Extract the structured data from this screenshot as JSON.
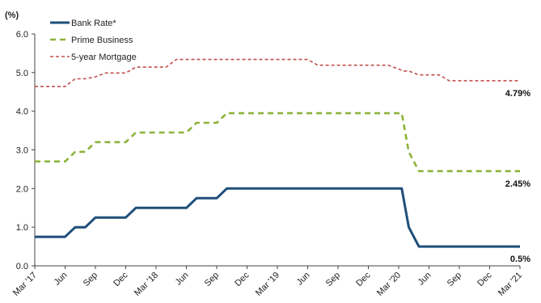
{
  "chart_data": {
    "type": "line",
    "unit_label": "(%)",
    "ylim": [
      0,
      6
    ],
    "yticks": [
      "0.0",
      "1.0",
      "2.0",
      "3.0",
      "4.0",
      "5.0",
      "6.0"
    ],
    "xlim": [
      0,
      48
    ],
    "xticks": [
      {
        "label": "Mar '17",
        "x": 0
      },
      {
        "label": "Jun",
        "x": 3
      },
      {
        "label": "Sep",
        "x": 6
      },
      {
        "label": "Dec",
        "x": 9
      },
      {
        "label": "Mar '18",
        "x": 12
      },
      {
        "label": "Jun",
        "x": 15
      },
      {
        "label": "Sep",
        "x": 18
      },
      {
        "label": "Dec",
        "x": 21
      },
      {
        "label": "Mar '19",
        "x": 24
      },
      {
        "label": "Jun",
        "x": 27
      },
      {
        "label": "Sep",
        "x": 30
      },
      {
        "label": "Dec",
        "x": 33
      },
      {
        "label": "Mar '20",
        "x": 36
      },
      {
        "label": "Jun",
        "x": 39
      },
      {
        "label": "Sep",
        "x": 42
      },
      {
        "label": "Dec",
        "x": 45
      },
      {
        "label": "Mar '21",
        "x": 48
      }
    ],
    "grid": false,
    "legend_position": "top-left",
    "series": [
      {
        "name": "Bank Rate*",
        "color": "#1f4e79",
        "style": "solid",
        "end_label": "0.5%",
        "points": [
          [
            0,
            0.75
          ],
          [
            3,
            0.75
          ],
          [
            4,
            1.0
          ],
          [
            5,
            1.0
          ],
          [
            6,
            1.25
          ],
          [
            9,
            1.25
          ],
          [
            10,
            1.5
          ],
          [
            15,
            1.5
          ],
          [
            16,
            1.75
          ],
          [
            18,
            1.75
          ],
          [
            19,
            2.0
          ],
          [
            36.3,
            2.0
          ],
          [
            37,
            1.0
          ],
          [
            38,
            0.5
          ],
          [
            48,
            0.5
          ]
        ]
      },
      {
        "name": "Prime Business",
        "color": "#8db33a",
        "style": "dashed",
        "end_label": "2.45%",
        "points": [
          [
            0,
            2.7
          ],
          [
            3,
            2.7
          ],
          [
            4,
            2.95
          ],
          [
            5,
            2.95
          ],
          [
            6,
            3.2
          ],
          [
            9,
            3.2
          ],
          [
            10,
            3.45
          ],
          [
            15,
            3.45
          ],
          [
            16,
            3.7
          ],
          [
            18,
            3.7
          ],
          [
            19,
            3.95
          ],
          [
            36.3,
            3.95
          ],
          [
            37,
            2.95
          ],
          [
            38,
            2.45
          ],
          [
            48,
            2.45
          ]
        ]
      },
      {
        "name": "5-year Mortgage",
        "color": "#c0504d",
        "style": "dotted",
        "end_label": "4.79%",
        "points": [
          [
            0,
            4.64
          ],
          [
            3,
            4.64
          ],
          [
            4,
            4.84
          ],
          [
            5,
            4.84
          ],
          [
            6,
            4.89
          ],
          [
            7,
            4.99
          ],
          [
            9,
            4.99
          ],
          [
            10,
            5.14
          ],
          [
            13,
            5.14
          ],
          [
            14,
            5.34
          ],
          [
            27,
            5.34
          ],
          [
            28,
            5.19
          ],
          [
            33,
            5.19
          ],
          [
            34,
            5.19
          ],
          [
            35,
            5.19
          ],
          [
            36.5,
            5.04
          ],
          [
            37,
            5.04
          ],
          [
            38,
            4.94
          ],
          [
            40,
            4.94
          ],
          [
            41,
            4.79
          ],
          [
            48,
            4.79
          ]
        ]
      }
    ]
  }
}
